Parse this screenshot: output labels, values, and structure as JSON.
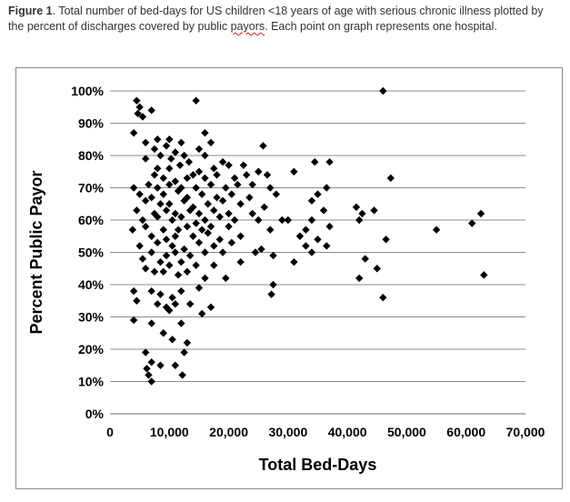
{
  "caption": {
    "label": "Figure 1",
    "text_a": ". Total number of bed-days for US children <18 years of age with serious chronic illness plotted by the percent of discharges covered by public ",
    "squiggle_word": "payors",
    "text_b": ". Each point on graph represents one hospital."
  },
  "chart_data": {
    "type": "scatter",
    "xlabel": "Total Bed-Days",
    "ylabel": "Percent Public Payor",
    "xlim": [
      0,
      70000
    ],
    "ylim": [
      0,
      100
    ],
    "x_ticks": [
      "0",
      "10,000",
      "20,000",
      "30,000",
      "40,000",
      "50,000",
      "60,000",
      "70,000"
    ],
    "y_ticks": [
      "0%",
      "10%",
      "20%",
      "30%",
      "40%",
      "50%",
      "60%",
      "70%",
      "80%",
      "90%",
      "100%"
    ],
    "grid": "horizontal",
    "marker": "diamond",
    "marker_color": "#000000",
    "points": [
      [
        46000,
        100
      ],
      [
        4500,
        97
      ],
      [
        14500,
        97
      ],
      [
        5000,
        95
      ],
      [
        4700,
        93
      ],
      [
        5500,
        92
      ],
      [
        7000,
        94
      ],
      [
        4000,
        87
      ],
      [
        6000,
        84
      ],
      [
        8000,
        85
      ],
      [
        10000,
        85
      ],
      [
        12000,
        84
      ],
      [
        16000,
        87
      ],
      [
        7500,
        82
      ],
      [
        9500,
        83
      ],
      [
        11000,
        81
      ],
      [
        15000,
        82
      ],
      [
        17000,
        84
      ],
      [
        25800,
        83
      ],
      [
        8500,
        80
      ],
      [
        10300,
        79
      ],
      [
        12500,
        80
      ],
      [
        16000,
        80
      ],
      [
        6000,
        79
      ],
      [
        13300,
        78
      ],
      [
        19000,
        78
      ],
      [
        20000,
        77
      ],
      [
        34500,
        78
      ],
      [
        37000,
        78
      ],
      [
        8000,
        76
      ],
      [
        10000,
        76
      ],
      [
        11800,
        77
      ],
      [
        15000,
        75
      ],
      [
        17500,
        76
      ],
      [
        22500,
        77
      ],
      [
        25000,
        75
      ],
      [
        31000,
        75
      ],
      [
        7500,
        74
      ],
      [
        9000,
        73
      ],
      [
        11000,
        72
      ],
      [
        13000,
        73
      ],
      [
        14000,
        74
      ],
      [
        16000,
        73
      ],
      [
        18000,
        74
      ],
      [
        21000,
        73
      ],
      [
        23000,
        74
      ],
      [
        26500,
        74
      ],
      [
        47300,
        73
      ],
      [
        6500,
        71
      ],
      [
        8000,
        70
      ],
      [
        10000,
        71
      ],
      [
        12000,
        70
      ],
      [
        14500,
        70
      ],
      [
        17000,
        71
      ],
      [
        19500,
        70
      ],
      [
        21500,
        71
      ],
      [
        24000,
        71
      ],
      [
        27000,
        70
      ],
      [
        36500,
        70
      ],
      [
        4000,
        70
      ],
      [
        5000,
        68
      ],
      [
        7000,
        67
      ],
      [
        9000,
        68
      ],
      [
        11500,
        69
      ],
      [
        13000,
        67
      ],
      [
        15500,
        68
      ],
      [
        18000,
        67
      ],
      [
        20500,
        68
      ],
      [
        23500,
        67
      ],
      [
        28000,
        68
      ],
      [
        35000,
        68
      ],
      [
        6000,
        66
      ],
      [
        8500,
        65
      ],
      [
        10000,
        65
      ],
      [
        12500,
        66
      ],
      [
        14000,
        64
      ],
      [
        16500,
        65
      ],
      [
        19000,
        66
      ],
      [
        22000,
        65
      ],
      [
        26000,
        64
      ],
      [
        34000,
        66
      ],
      [
        41500,
        64
      ],
      [
        44500,
        63
      ],
      [
        4500,
        63
      ],
      [
        7500,
        62
      ],
      [
        9500,
        63
      ],
      [
        11000,
        62
      ],
      [
        13500,
        63
      ],
      [
        15000,
        62
      ],
      [
        17500,
        63
      ],
      [
        20000,
        62
      ],
      [
        24000,
        62
      ],
      [
        29000,
        60
      ],
      [
        36000,
        63
      ],
      [
        42500,
        62
      ],
      [
        62500,
        62
      ],
      [
        5500,
        60
      ],
      [
        8000,
        61
      ],
      [
        10500,
        60
      ],
      [
        12000,
        61
      ],
      [
        14500,
        59
      ],
      [
        16000,
        60
      ],
      [
        18500,
        61
      ],
      [
        21000,
        60
      ],
      [
        25000,
        60
      ],
      [
        30000,
        60
      ],
      [
        34000,
        60
      ],
      [
        42000,
        60
      ],
      [
        61000,
        59
      ],
      [
        3800,
        57
      ],
      [
        6000,
        58
      ],
      [
        9000,
        57
      ],
      [
        11500,
        57
      ],
      [
        13000,
        58
      ],
      [
        15500,
        57
      ],
      [
        17000,
        58
      ],
      [
        20000,
        58
      ],
      [
        27000,
        57
      ],
      [
        33000,
        57
      ],
      [
        37000,
        58
      ],
      [
        55000,
        57
      ],
      [
        7000,
        55
      ],
      [
        9500,
        54
      ],
      [
        11000,
        55
      ],
      [
        14000,
        55
      ],
      [
        16500,
        56
      ],
      [
        18500,
        54
      ],
      [
        22000,
        55
      ],
      [
        32000,
        55
      ],
      [
        35000,
        54
      ],
      [
        46500,
        54
      ],
      [
        5000,
        52
      ],
      [
        8000,
        53
      ],
      [
        10500,
        52
      ],
      [
        12500,
        51
      ],
      [
        15000,
        53
      ],
      [
        17500,
        52
      ],
      [
        20500,
        53
      ],
      [
        25500,
        51
      ],
      [
        33000,
        52
      ],
      [
        36500,
        52
      ],
      [
        7000,
        50
      ],
      [
        9500,
        49
      ],
      [
        11000,
        50
      ],
      [
        13500,
        49
      ],
      [
        16000,
        50
      ],
      [
        19000,
        50
      ],
      [
        24500,
        50
      ],
      [
        27500,
        49
      ],
      [
        34000,
        50
      ],
      [
        43000,
        48
      ],
      [
        5500,
        48
      ],
      [
        8500,
        47
      ],
      [
        10000,
        46
      ],
      [
        12000,
        47
      ],
      [
        14500,
        46
      ],
      [
        17500,
        46
      ],
      [
        22000,
        47
      ],
      [
        31000,
        47
      ],
      [
        45000,
        45
      ],
      [
        6000,
        45
      ],
      [
        7500,
        44
      ],
      [
        9000,
        44
      ],
      [
        11500,
        43
      ],
      [
        13000,
        44
      ],
      [
        16000,
        42
      ],
      [
        19500,
        42
      ],
      [
        27500,
        40
      ],
      [
        42000,
        42
      ],
      [
        63000,
        43
      ],
      [
        4000,
        38
      ],
      [
        7000,
        38
      ],
      [
        8500,
        37
      ],
      [
        10500,
        36
      ],
      [
        12000,
        38
      ],
      [
        15000,
        39
      ],
      [
        27200,
        37
      ],
      [
        46000,
        36
      ],
      [
        4500,
        35
      ],
      [
        8000,
        34
      ],
      [
        9500,
        33
      ],
      [
        11000,
        34
      ],
      [
        13500,
        34
      ],
      [
        17000,
        33
      ],
      [
        10000,
        32
      ],
      [
        15500,
        31
      ],
      [
        4000,
        29
      ],
      [
        7000,
        28
      ],
      [
        12000,
        28
      ],
      [
        9000,
        25
      ],
      [
        10500,
        23
      ],
      [
        13000,
        22
      ],
      [
        6000,
        19
      ],
      [
        12500,
        19
      ],
      [
        7000,
        16
      ],
      [
        8500,
        15
      ],
      [
        6200,
        14
      ],
      [
        11000,
        15
      ],
      [
        6500,
        12
      ],
      [
        12200,
        12
      ],
      [
        7000,
        10
      ]
    ]
  }
}
